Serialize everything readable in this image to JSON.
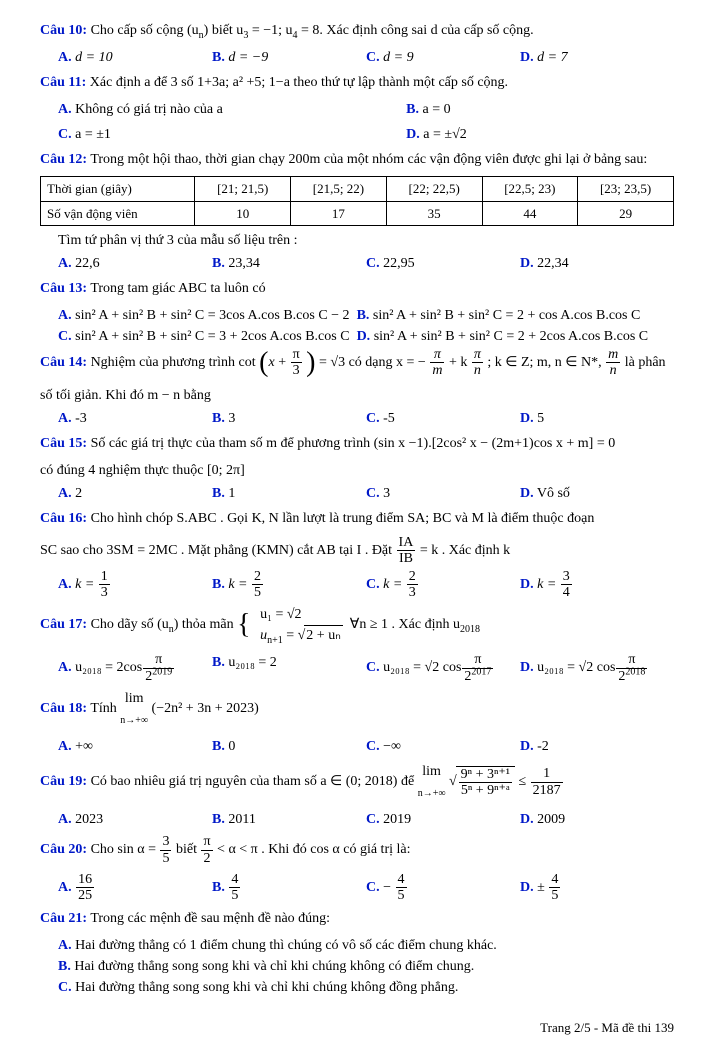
{
  "q10": {
    "label": "Câu 10:",
    "text_a": "Cho cấp số cộng (u",
    "text_b": ") biết u",
    "text_c": " = −1; u",
    "text_d": " = 8. Xác định công sai d của cấp số cộng.",
    "sub_n": "n",
    "sub_3": "3",
    "sub_4": "4",
    "A": "A.",
    "A_v": "d = 10",
    "B": "B.",
    "B_v": "d = −9",
    "C": "C.",
    "C_v": "d = 9",
    "D": "D.",
    "D_v": "d = 7"
  },
  "q11": {
    "label": "Câu 11:",
    "text": "Xác định a để 3 số 1+3a; a² +5; 1−a theo thứ tự lập thành một cấp số cộng.",
    "A": "A.",
    "A_v": "Không có giá trị nào của a",
    "B": "B.",
    "B_v": "a = 0",
    "C": "C.",
    "C_v": "a = ±1",
    "D": "D.",
    "D_v": "a = ±√2"
  },
  "q12": {
    "label": "Câu 12:",
    "text": "Trong một hội thao, thời gian chạy 200m của một nhóm các vận động viên được ghi lại ở bảng sau:",
    "h1": "Thời gian (giây)",
    "h2": "Số vận động viên",
    "c1": "[21; 21,5)",
    "c2": "[21,5; 22)",
    "c3": "[22; 22,5)",
    "c4": "[22,5; 23)",
    "c5": "[23; 23,5)",
    "v1": "10",
    "v2": "17",
    "v3": "35",
    "v4": "44",
    "v5": "29",
    "sub": "Tìm tứ phân vị thứ 3 của mẫu số liệu trên :",
    "A": "A.",
    "A_v": "22,6",
    "B": "B.",
    "B_v": "23,34",
    "C": "C.",
    "C_v": "22,95",
    "D": "D.",
    "D_v": "22,34"
  },
  "q13": {
    "label": "Câu 13:",
    "text": "Trong tam giác ABC ta luôn có",
    "A": "A.",
    "A_v": "sin² A + sin² B + sin² C = 3cos A.cos B.cos C − 2",
    "B": "B.",
    "B_v": "sin² A + sin² B + sin² C = 2 + cos A.cos B.cos C",
    "C": "C.",
    "C_v": "sin² A + sin² B + sin² C = 3 + 2cos A.cos B.cos C",
    "D": "D.",
    "D_v": "sin² A + sin² B + sin² C = 2 + 2cos A.cos B.cos C"
  },
  "q14": {
    "label": "Câu 14:",
    "text_a": "Nghiệm của phương trình cot",
    "text_b": "= √3 có dạng x = −",
    "text_c": "; k ∈ Z; m, n ∈ N*, ",
    "text_d": " là phân",
    "line2": "số tối giản. Khi đó m − n bằng",
    "pi": "π",
    "three": "3",
    "m": "m",
    "n": "n",
    "kpi": "kπ",
    "plus": " + k",
    "A": "A.",
    "A_v": "-3",
    "B": "B.",
    "B_v": "3",
    "C": "C.",
    "C_v": "-5",
    "D": "D.",
    "D_v": "5"
  },
  "q15": {
    "label": "Câu 15:",
    "text": "Số các giá trị thực của tham số m để phương trình (sin x −1).[2cos² x − (2m+1)cos x + m] = 0",
    "line2": "có đúng 4 nghiệm thực thuộc [0; 2π]",
    "A": "A.",
    "A_v": "2",
    "B": "B.",
    "B_v": "1",
    "C": "C.",
    "C_v": "3",
    "D": "D.",
    "D_v": "Vô số"
  },
  "q16": {
    "label": "Câu 16:",
    "text_a": "Cho hình chóp S.ABC . Gọi K, N lần lượt là trung điểm SA; BC và M là điểm thuộc đoạn",
    "text_b": "SC sao cho 3SM = 2MC . Mặt phẳng (KMN) cắt AB tại I . Đặt ",
    "ia": "IA",
    "ib": "IB",
    "text_c": " = k . Xác định k",
    "A": "A.",
    "B": "B.",
    "C": "C.",
    "D": "D.",
    "k_eq": "k = ",
    "n1": "1",
    "d1": "3",
    "n2": "2",
    "d2": "5",
    "n3": "2",
    "d3": "3",
    "n4": "3",
    "d4": "4"
  },
  "q17": {
    "label": "Câu 17:",
    "text_a": "Cho dãy số (u",
    "text_b": ") thỏa mãn ",
    "cond": "∀n ≥ 1 . Xác định u",
    "sub_n": "n",
    "sub_2018": "2018",
    "u1": "u₁ = √2",
    "un1_a": "u",
    "un1_b": " = ",
    "sqrt_inner": "2 + uₙ",
    "sub_np1": "n+1",
    "A": "A.",
    "B": "B.",
    "C": "C.",
    "D": "D.",
    "u2018": "u₂₀₁₈ = ",
    "two": "2",
    "cos": "cos",
    "sqrt2": "√2",
    "pi": "π",
    "e1": "2019",
    "e3": "2017",
    "e4": "2018"
  },
  "q18": {
    "label": "Câu 18:",
    "text_a": "Tính ",
    "lim": "lim",
    "sub": "n→+∞",
    "expr": "(−2n² + 3n + 2023)",
    "A": "A.",
    "A_v": "+∞",
    "B": "B.",
    "B_v": "0",
    "C": "C.",
    "C_v": "−∞",
    "D": "D.",
    "D_v": "-2"
  },
  "q19": {
    "label": "Câu 19:",
    "text_a": "Có bao nhiêu giá trị nguyên của tham số a ∈ (0; 2018) để ",
    "lim": "lim",
    "sub_lim": "n→+∞",
    "num": "9ⁿ + 3ⁿ⁺¹",
    "den": "5ⁿ + 9ⁿ⁺ᵃ",
    "leq": " ≤ ",
    "rn": "1",
    "rd": "2187",
    "A": "A.",
    "A_v": "2023",
    "B": "B.",
    "B_v": "2011",
    "C": "C.",
    "C_v": "2019",
    "D": "D.",
    "D_v": "2009"
  },
  "q20": {
    "label": "Câu 20:",
    "text_a": "Cho sin α = ",
    "n1": "3",
    "d1": "5",
    "text_b": " biết ",
    "n2": "π",
    "d2": "2",
    "text_c": " < α < π . Khi đó cos α có giá trị là:",
    "A": "A.",
    "B": "B.",
    "C": "C.",
    "D": "D.",
    "an": "16",
    "ad": "25",
    "bn": "4",
    "bd": "5",
    "cn": "4",
    "cd": "5",
    "dn": "4",
    "dd": "5",
    "minus": "− ",
    "pm": "± "
  },
  "q21": {
    "label": "Câu 21:",
    "text": "Trong các mệnh đề sau mệnh đề nào đúng:",
    "A": "A.",
    "A_v": "Hai đường thẳng có 1 điểm chung thì chúng có vô số các điểm chung khác.",
    "B": "B.",
    "B_v": "Hai đường thẳng song song khi và chỉ khi chúng không có điểm chung.",
    "C": "C.",
    "C_v": "Hai đường thẳng song song khi và chỉ khi chúng không đồng phẳng."
  },
  "footer": "Trang 2/5 - Mã đề thi 139"
}
